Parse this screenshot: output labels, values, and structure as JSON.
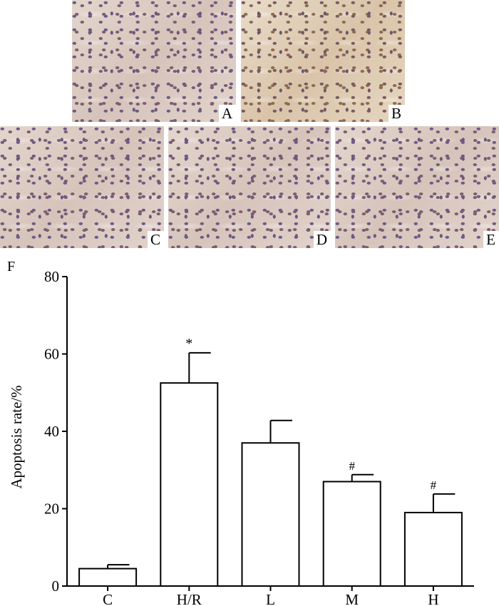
{
  "panels": [
    {
      "letter": "A"
    },
    {
      "letter": "B"
    },
    {
      "letter": "C"
    },
    {
      "letter": "D"
    },
    {
      "letter": "E"
    }
  ],
  "chart_data": {
    "type": "bar",
    "panel_label": "F",
    "ylabel": "Apoptosis rate/%",
    "xlabel": "",
    "ylim": [
      0,
      80
    ],
    "yticks": [
      0,
      20,
      40,
      60,
      80
    ],
    "categories": [
      "C",
      "H/R",
      "L",
      "M",
      "H"
    ],
    "values": [
      4.5,
      52.5,
      37.0,
      27.0,
      19.0
    ],
    "errors": [
      1.0,
      7.8,
      5.8,
      1.8,
      4.8
    ],
    "annotations": [
      "",
      "*",
      "",
      "#",
      "#"
    ],
    "bar_fill": "#ffffff",
    "bar_stroke": "#000000",
    "grid": false
  }
}
